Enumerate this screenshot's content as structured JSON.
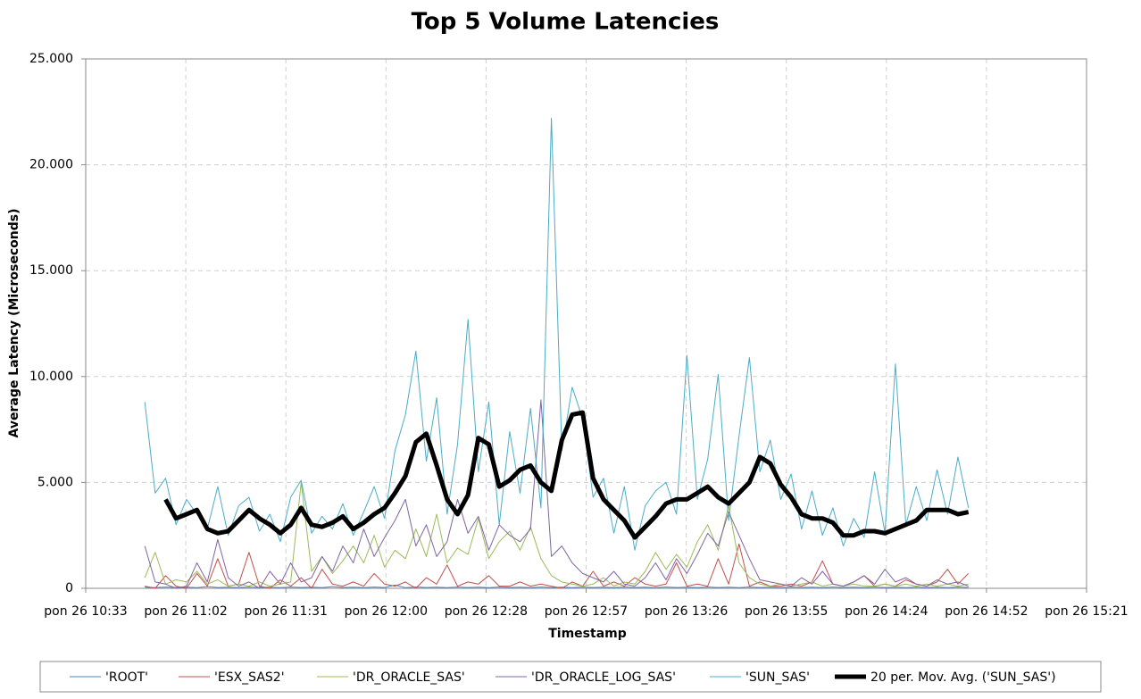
{
  "chart_data": {
    "type": "line",
    "title": "Top 5 Volume Latencies",
    "x_label": "Timestamp",
    "y_label": "Average Latency (Microseconds)",
    "xlim": [
      633,
      921
    ],
    "xticks": [
      {
        "value": 633,
        "label": "pon 26 10:33"
      },
      {
        "value": 661.8,
        "label": "pon 26 11:02"
      },
      {
        "value": 690.6,
        "label": "pon 26 11:31"
      },
      {
        "value": 719.4,
        "label": "pon 26 12:00"
      },
      {
        "value": 748.2,
        "label": "pon 26 12:28"
      },
      {
        "value": 777,
        "label": "pon 26 12:57"
      },
      {
        "value": 805.8,
        "label": "pon 26 13:26"
      },
      {
        "value": 834.6,
        "label": "pon 26 13:55"
      },
      {
        "value": 863.4,
        "label": "pon 26 14:24"
      },
      {
        "value": 892.2,
        "label": "pon 26 14:52"
      },
      {
        "value": 921,
        "label": "pon 26 15:21"
      }
    ],
    "ylim": [
      0,
      25000
    ],
    "yticks": [
      0,
      {
        "value": 5000,
        "label": "5.000"
      },
      {
        "value": 10000,
        "label": "10.000"
      },
      {
        "value": 15000,
        "label": "15.000"
      },
      {
        "value": 20000,
        "label": "20.000"
      },
      {
        "value": 25000,
        "label": "25.000"
      }
    ],
    "grid": true,
    "legend": "bottom",
    "x": [
      650,
      653,
      656,
      659,
      662,
      665,
      668,
      671,
      674,
      677,
      680,
      683,
      686,
      689,
      692,
      695,
      698,
      701,
      704,
      707,
      710,
      713,
      716,
      719,
      722,
      725,
      728,
      731,
      734,
      737,
      740,
      743,
      746,
      749,
      752,
      755,
      758,
      761,
      764,
      767,
      770,
      773,
      776,
      779,
      782,
      785,
      788,
      791,
      794,
      797,
      800,
      803,
      806,
      809,
      812,
      815,
      818,
      821,
      824,
      827,
      830,
      833,
      836,
      839,
      842,
      845,
      848,
      851,
      854,
      857,
      860,
      863,
      866,
      869,
      872,
      875,
      878,
      881,
      884,
      887
    ],
    "series": [
      {
        "name": "'ROOT'",
        "color": "#4f81bd",
        "width": 1,
        "values": [
          50,
          30,
          60,
          40,
          50,
          30,
          80,
          40,
          50,
          30,
          60,
          40,
          50,
          30,
          60,
          40,
          50,
          30,
          80,
          40,
          50,
          30,
          60,
          40,
          150,
          30,
          60,
          40,
          50,
          30,
          60,
          40,
          50,
          30,
          60,
          40,
          50,
          30,
          60,
          40,
          50,
          30,
          60,
          40,
          50,
          30,
          60,
          40,
          50,
          30,
          60,
          40,
          50,
          30,
          60,
          40,
          50,
          30,
          60,
          40,
          50,
          30,
          60,
          40,
          50,
          30,
          60,
          40,
          50,
          30,
          60,
          40,
          50,
          30,
          60,
          40,
          50,
          30,
          60,
          40
        ]
      },
      {
        "name": "'ESX_SAS2'",
        "color": "#c0504d",
        "width": 1,
        "values": [
          100,
          0,
          600,
          100,
          0,
          700,
          100,
          1400,
          100,
          200,
          1700,
          100,
          0,
          400,
          100,
          500,
          0,
          900,
          200,
          100,
          300,
          100,
          700,
          200,
          100,
          300,
          0,
          500,
          200,
          1100,
          100,
          300,
          200,
          600,
          100,
          100,
          300,
          100,
          200,
          100,
          0,
          300,
          100,
          800,
          100,
          300,
          100,
          500,
          200,
          100,
          200,
          1200,
          100,
          200,
          100,
          1400,
          200,
          2100,
          100,
          300,
          100,
          100,
          200,
          100,
          300,
          1300,
          200,
          100,
          300,
          600,
          100,
          200,
          100,
          400,
          200,
          100,
          300,
          900,
          200,
          700
        ]
      },
      {
        "name": "'DR_ORACLE_SAS'",
        "color": "#9bbb59",
        "width": 1,
        "values": [
          500,
          1700,
          200,
          400,
          300,
          800,
          200,
          400,
          100,
          200,
          100,
          300,
          100,
          200,
          300,
          5000,
          800,
          1500,
          700,
          1300,
          2000,
          1200,
          2500,
          1000,
          1800,
          1400,
          2800,
          1500,
          3500,
          1200,
          1900,
          1600,
          3300,
          1400,
          2200,
          2700,
          1800,
          2900,
          1400,
          600,
          300,
          200,
          100,
          200,
          500,
          100,
          300,
          200,
          800,
          1700,
          900,
          1600,
          1000,
          2200,
          3000,
          1800,
          3900,
          1200,
          500,
          200,
          100,
          200,
          100,
          200,
          300,
          100,
          200,
          100,
          200,
          100,
          100,
          200,
          100,
          200,
          100,
          200,
          100,
          200,
          100,
          200
        ]
      },
      {
        "name": "'DR_ORACLE_LOG_SAS'",
        "color": "#8064a2",
        "width": 1,
        "values": [
          2000,
          300,
          200,
          0,
          100,
          1200,
          300,
          2300,
          500,
          100,
          300,
          0,
          800,
          200,
          1200,
          300,
          500,
          1500,
          800,
          2000,
          1200,
          2800,
          1500,
          2400,
          3200,
          4200,
          2000,
          3000,
          1500,
          2200,
          4200,
          2600,
          3400,
          1800,
          3000,
          2500,
          2200,
          2800,
          8900,
          1500,
          2000,
          1200,
          700,
          500,
          300,
          800,
          200,
          100,
          500,
          1200,
          400,
          1400,
          700,
          1600,
          2600,
          2000,
          3600,
          2500,
          1400,
          400,
          300,
          200,
          100,
          500,
          200,
          800,
          200,
          100,
          300,
          600,
          200,
          900,
          300,
          500,
          200,
          100,
          400,
          200,
          300,
          100
        ]
      },
      {
        "name": "'SUN_SAS'",
        "color": "#4bacc6",
        "width": 1,
        "values": [
          8800,
          4500,
          5200,
          3000,
          4200,
          3500,
          2800,
          4800,
          2500,
          3900,
          4300,
          2700,
          3500,
          2200,
          4300,
          5100,
          2600,
          3400,
          2800,
          4000,
          2500,
          3600,
          4800,
          3300,
          6500,
          8200,
          11200,
          6000,
          9000,
          3500,
          6800,
          12700,
          5500,
          8800,
          3000,
          7400,
          4500,
          8500,
          3800,
          22200,
          6500,
          9500,
          8000,
          4300,
          5200,
          2600,
          4800,
          1800,
          3900,
          4600,
          5000,
          3500,
          11000,
          4200,
          6100,
          10100,
          3200,
          7200,
          10900,
          5500,
          7000,
          4200,
          5400,
          2800,
          4600,
          2500,
          3800,
          2000,
          3300,
          2400,
          5500,
          2600,
          10600,
          3000,
          4800,
          3200,
          5600,
          3500,
          6200,
          3800
        ]
      },
      {
        "name": "20 per. Mov. Avg. ('SUN_SAS')",
        "color": "#000000",
        "width": 5,
        "values": [
          null,
          null,
          4200,
          3300,
          3500,
          3700,
          2800,
          2600,
          2700,
          3200,
          3700,
          3300,
          3000,
          2600,
          3000,
          3800,
          3000,
          2900,
          3100,
          3400,
          2800,
          3100,
          3500,
          3800,
          4500,
          5300,
          6900,
          7300,
          5800,
          4200,
          3500,
          4400,
          7100,
          6800,
          4800,
          5100,
          5600,
          5800,
          5000,
          4600,
          7000,
          8200,
          8300,
          5200,
          4200,
          3700,
          3200,
          2400,
          2900,
          3400,
          4000,
          4200,
          4200,
          4500,
          4800,
          4300,
          4000,
          4500,
          5000,
          6200,
          5900,
          4900,
          4300,
          3500,
          3300,
          3300,
          3100,
          2500,
          2500,
          2700,
          2700,
          2600,
          2800,
          3000,
          3200,
          3700,
          3700,
          3700,
          3500,
          3600
        ]
      }
    ]
  }
}
